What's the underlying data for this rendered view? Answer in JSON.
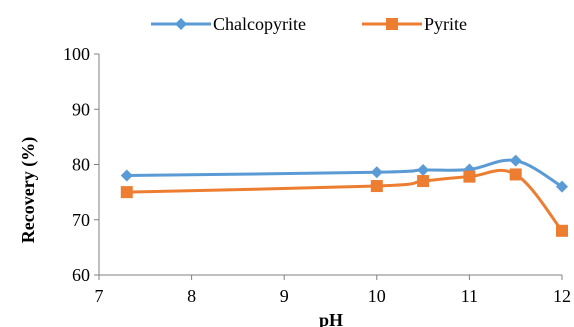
{
  "chart_data": {
    "type": "line",
    "title": "",
    "xlabel": "pH",
    "ylabel": "Recovery (%)",
    "xlim": [
      7,
      12
    ],
    "ylim": [
      60,
      100
    ],
    "x_ticks": [
      7,
      8,
      9,
      10,
      11,
      12
    ],
    "y_ticks": [
      60,
      70,
      80,
      90,
      100
    ],
    "grid": false,
    "legend_position": "top",
    "series": [
      {
        "name": "Chalcopyrite",
        "color": "#5b9bd5",
        "marker": "diamond",
        "x": [
          7.3,
          10,
          10.5,
          11,
          11.5,
          12
        ],
        "y": [
          78,
          78.6,
          79.0,
          79.1,
          80.7,
          76.0
        ]
      },
      {
        "name": "Pyrite",
        "color": "#ed7d31",
        "marker": "square",
        "x": [
          7.3,
          10,
          10.5,
          11,
          11.5,
          12
        ],
        "y": [
          75,
          76.1,
          77.0,
          77.8,
          78.2,
          68.0
        ]
      }
    ]
  }
}
